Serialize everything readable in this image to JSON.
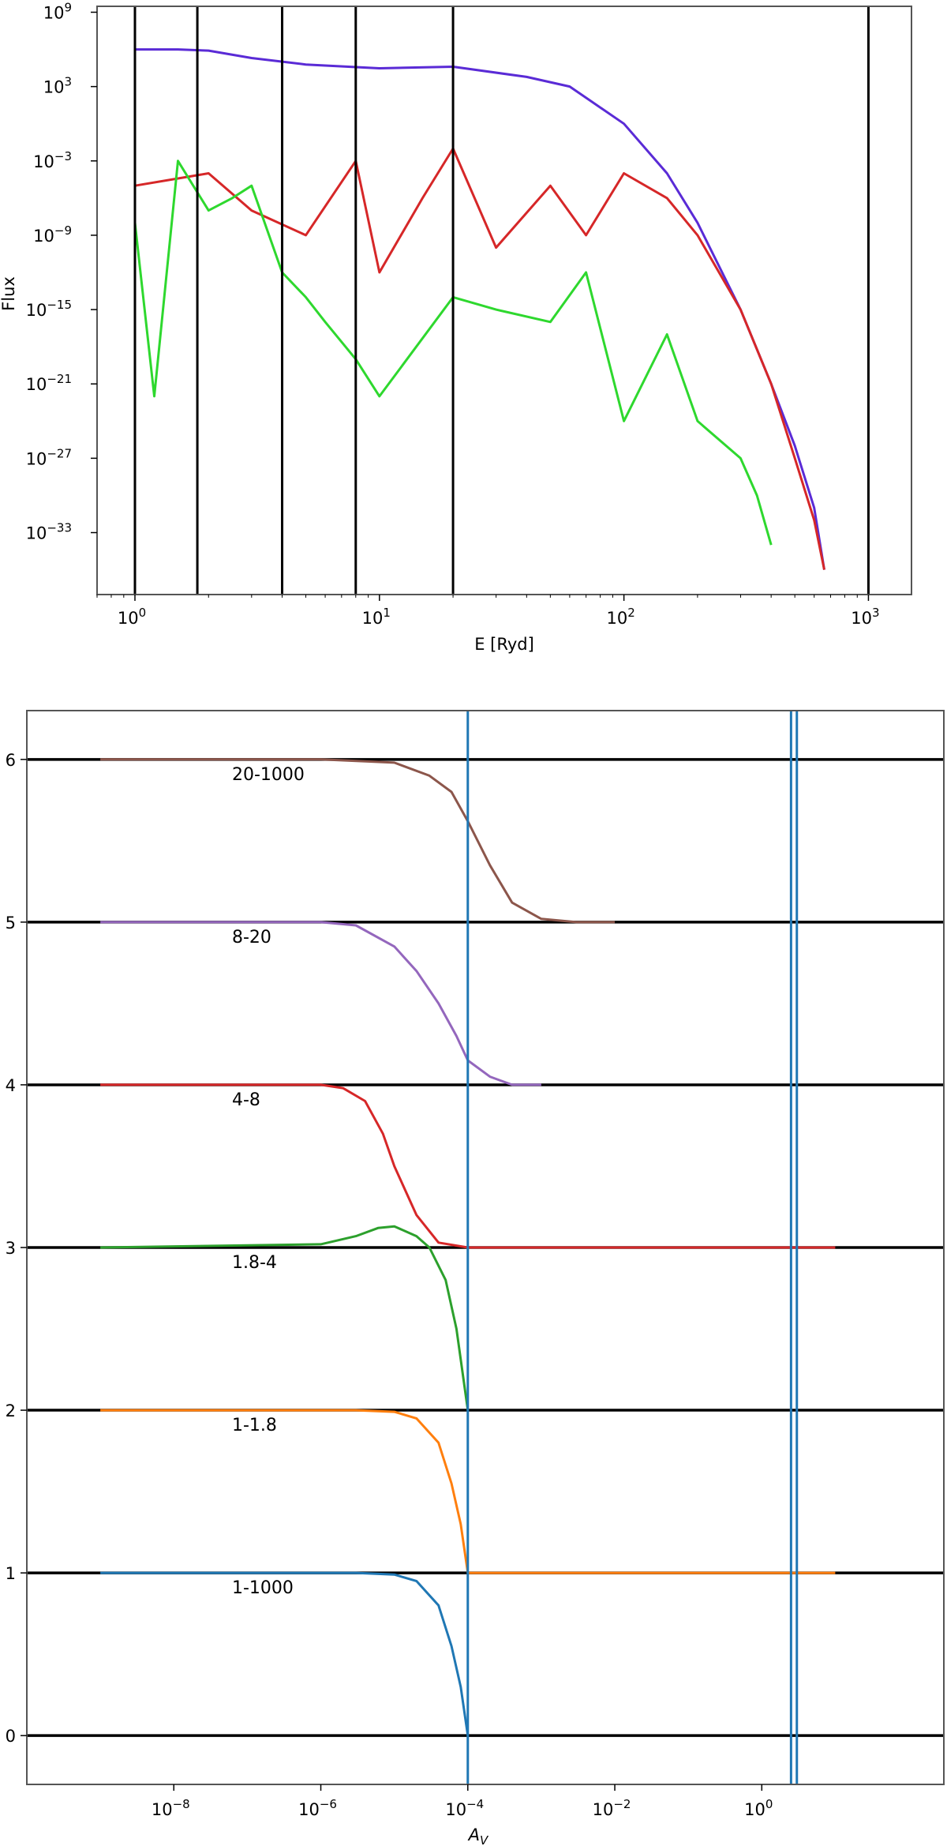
{
  "chart_data": [
    {
      "type": "line",
      "xscale": "log",
      "yscale": "log",
      "xlim": [
        0.7,
        1500
      ],
      "ylim": [
        1e-38,
        3000000000.0
      ],
      "xlabel": "E [Ryd]",
      "ylabel": "Flux",
      "xticks": [
        1,
        10,
        100,
        1000
      ],
      "xtick_labels": [
        {
          "base": "10",
          "exp": "0"
        },
        {
          "base": "10",
          "exp": "1"
        },
        {
          "base": "10",
          "exp": "2"
        },
        {
          "base": "10",
          "exp": "3"
        }
      ],
      "yticks": [
        1000000000.0,
        1000.0,
        0.001,
        1e-09,
        1e-15,
        1e-21,
        1e-27,
        1e-33
      ],
      "ytick_labels": [
        {
          "base": "10",
          "exp": "9"
        },
        {
          "base": "10",
          "exp": "3"
        },
        {
          "base": "10",
          "exp": "−3"
        },
        {
          "base": "10",
          "exp": "−9"
        },
        {
          "base": "10",
          "exp": "−15"
        },
        {
          "base": "10",
          "exp": "−21"
        },
        {
          "base": "10",
          "exp": "−27"
        },
        {
          "base": "10",
          "exp": "−33"
        }
      ],
      "vlines": [
        1,
        1.8,
        4,
        8,
        20,
        1000
      ],
      "vline_color": "#000000",
      "series": [
        {
          "color": "#5a2bd6",
          "x": [
            1,
            1.5,
            2,
            3,
            5,
            10,
            20,
            40,
            60,
            100,
            150,
            200,
            300,
            400,
            500,
            600,
            660
          ],
          "y": [
            1000000.0,
            1000000.0,
            800000.0,
            200000.0,
            60000.0,
            30000.0,
            40000.0,
            6000.0,
            1000.0,
            1.0,
            0.0001,
            1e-08,
            1e-15,
            1e-21,
            1e-26,
            1e-31,
            1e-36
          ]
        },
        {
          "color": "#d62728",
          "x": [
            1,
            2,
            3,
            5,
            8,
            10,
            15,
            20,
            30,
            50,
            70,
            100,
            150,
            200,
            300,
            400,
            500,
            600,
            660
          ],
          "y": [
            1e-05,
            0.0001,
            1e-07,
            1e-09,
            0.001,
            1e-12,
            1e-06,
            0.01,
            1e-10,
            1e-05,
            1e-09,
            0.0001,
            1e-06,
            1e-09,
            1e-15,
            1e-21,
            1e-27,
            1e-32,
            1e-36
          ]
        },
        {
          "color": "#2ed82e",
          "x": [
            1,
            1.2,
            1.5,
            2,
            2.5,
            3,
            4,
            5,
            6,
            8,
            10,
            20,
            30,
            50,
            70,
            100,
            150,
            200,
            300,
            350,
            400
          ],
          "y": [
            1e-08,
            1e-22,
            0.001,
            1e-07,
            1e-06,
            1e-05,
            1e-12,
            1e-14,
            1e-16,
            1e-19,
            1e-22,
            1e-14,
            1e-15,
            1e-16,
            1e-12,
            1e-24,
            1e-17,
            1e-24,
            1e-27,
            1e-30,
            1e-34
          ]
        }
      ]
    },
    {
      "type": "line",
      "xscale": "log",
      "xlim": [
        1e-10,
        300
      ],
      "ylim": [
        -0.3,
        6.3
      ],
      "xlabel": "A_V",
      "ylabel": "",
      "xticks": [
        1e-08,
        1e-06,
        0.0001,
        0.01,
        1
      ],
      "xtick_labels": [
        {
          "base": "10",
          "exp": "−8"
        },
        {
          "base": "10",
          "exp": "−6"
        },
        {
          "base": "10",
          "exp": "−4"
        },
        {
          "base": "10",
          "exp": "−2"
        },
        {
          "base": "10",
          "exp": "0"
        }
      ],
      "yticks": [
        0,
        1,
        2,
        3,
        4,
        5,
        6
      ],
      "ytick_labels": [
        "0",
        "1",
        "2",
        "3",
        "4",
        "5",
        "6"
      ],
      "hlines": [
        0,
        1,
        2,
        3,
        4,
        5,
        6
      ],
      "vlines": [
        0.0001,
        2.5,
        3.0
      ],
      "vline_color": "#1f77b4",
      "series": [
        {
          "label": "1-1000",
          "color": "#1f77b4",
          "x": [
            1e-09,
            1e-06,
            3e-06,
            1e-05,
            2e-05,
            4e-05,
            6e-05,
            8e-05,
            0.0001
          ],
          "y": [
            1.0,
            1.0,
            1.0,
            0.99,
            0.95,
            0.8,
            0.55,
            0.3,
            0.0
          ]
        },
        {
          "label": "1-1.8",
          "color": "#ff7f0e",
          "x": [
            1e-09,
            1e-06,
            3e-06,
            1e-05,
            2e-05,
            4e-05,
            6e-05,
            8e-05,
            0.0001,
            0.001,
            0.1,
            10
          ],
          "y": [
            2.0,
            2.0,
            2.0,
            1.99,
            1.95,
            1.8,
            1.55,
            1.3,
            1.0,
            1.0,
            1.0,
            1.0
          ]
        },
        {
          "label": "1.8-4",
          "color": "#2ca02c",
          "x": [
            1e-09,
            1e-06,
            3e-06,
            6e-06,
            1e-05,
            2e-05,
            3e-05,
            5e-05,
            7e-05,
            0.0001
          ],
          "y": [
            3.0,
            3.02,
            3.07,
            3.12,
            3.13,
            3.07,
            3.0,
            2.8,
            2.5,
            2.0
          ]
        },
        {
          "label": "4-8",
          "color": "#d62728",
          "x": [
            1e-09,
            1e-06,
            2e-06,
            4e-06,
            7e-06,
            1e-05,
            2e-05,
            4e-05,
            0.0001,
            0.01,
            10
          ],
          "y": [
            4.0,
            4.0,
            3.98,
            3.9,
            3.7,
            3.5,
            3.2,
            3.03,
            3.0,
            3.0,
            3.0
          ]
        },
        {
          "label": "8-20",
          "color": "#9467bd",
          "x": [
            1e-09,
            1e-06,
            3e-06,
            1e-05,
            2e-05,
            4e-05,
            7e-05,
            0.0001,
            0.0002,
            0.0004,
            0.001
          ],
          "y": [
            5.0,
            5.0,
            4.98,
            4.85,
            4.7,
            4.5,
            4.3,
            4.15,
            4.05,
            4.0,
            4.0
          ]
        },
        {
          "label": "20-1000",
          "color": "#8c564b",
          "x": [
            1e-09,
            1e-06,
            1e-05,
            3e-05,
            6e-05,
            0.0001,
            0.0002,
            0.0004,
            0.001,
            0.003,
            0.01
          ],
          "y": [
            6.0,
            6.0,
            5.98,
            5.9,
            5.8,
            5.62,
            5.35,
            5.12,
            5.02,
            5.0,
            5.0
          ]
        }
      ]
    }
  ]
}
